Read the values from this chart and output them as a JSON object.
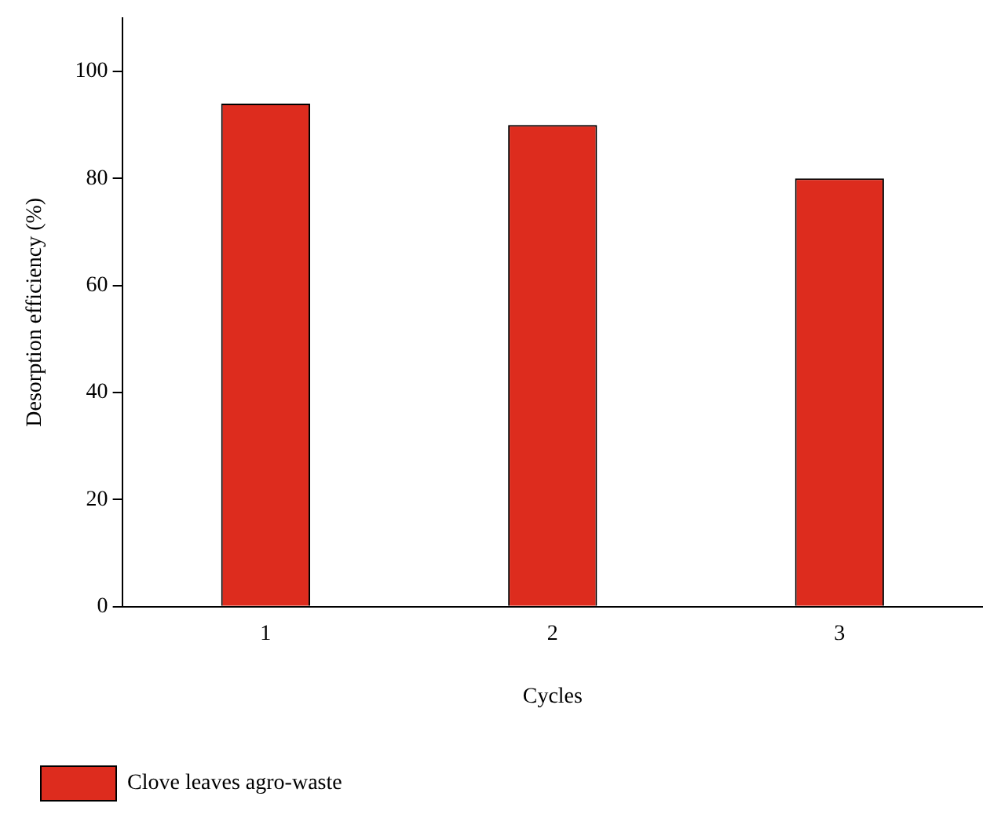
{
  "chart_data": {
    "type": "bar",
    "xlabel": "Cycles",
    "ylabel": "Desorption efficiency (%)",
    "categories": [
      "1",
      "2",
      "3"
    ],
    "series": [
      {
        "name": "Clove leaves agro-waste",
        "color": "#dd2c1e",
        "values": [
          94,
          90,
          80
        ]
      }
    ],
    "ylim": [
      0,
      110
    ],
    "yticks": [
      0,
      20,
      40,
      60,
      80,
      100
    ],
    "grid": false,
    "legend": "bottom left"
  }
}
